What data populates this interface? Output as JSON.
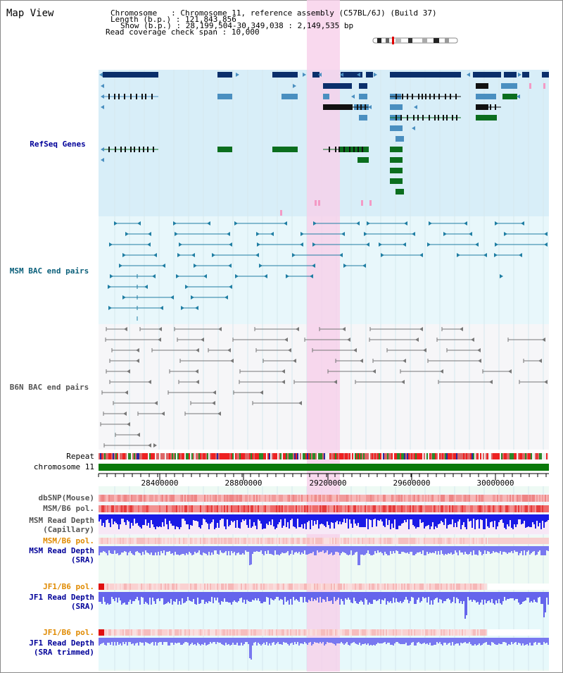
{
  "app": {
    "title": "Map View"
  },
  "header": {
    "chromosome_key": "Chromosome",
    "chromosome_val": "Chromosome 11, reference assembly (C57BL/6J) (Build 37)",
    "length_key": "Length (b.p.)",
    "length_val": "121,843,856",
    "show_key": "Show (b.p.)",
    "show_val": "28,199,504-30,349,038 : 2,149,535 bp",
    "coverage_key": "Read coverage check span",
    "coverage_val": "10,000"
  },
  "tracks": {
    "refseq": "RefSeq Genes",
    "msm_bac": "MSM BAC end pairs",
    "b6n_bac": "B6N BAC end pairs",
    "repeat": "Repeat",
    "chromosome": "chromosome 11",
    "dbsnp": "dbSNP(Mouse)",
    "msm_b6_pol": "MSM/B6 pol.",
    "msm_depth_cap_1": "MSM Read Depth",
    "msm_depth_cap_2": "(Capillary)",
    "msm_b6_pol2": "MSM/B6 pol.",
    "msm_depth_sra_1": "MSM Read Depth",
    "msm_depth_sra_2": "(SRA)",
    "jf1_pol": "JF1/B6 pol.",
    "jf1_depth_1": "JF1 Read Depth",
    "jf1_depth_2": "(SRA)",
    "jf1_pol2": "JF1/B6 pol.",
    "jf1_trim_1": "JF1 Read Depth",
    "jf1_trim_2": "(SRA trimmed)"
  },
  "axis": {
    "ticks": [
      "28400000",
      "28800000",
      "29200000",
      "29600000",
      "30000000"
    ]
  },
  "colors": {
    "gene_dark": "#0b2f6b",
    "gene_mid": "#4a8fc0",
    "gene_green": "#0b6e1e",
    "refseq_bg": "#d8eef8",
    "msm_bg": "#e8f7fb",
    "b6n_bg": "#f6f6f8",
    "highlight": "#f8cfea",
    "label_blue": "#000099",
    "label_teal": "#0a5f7a",
    "label_gray": "#555555",
    "label_orange": "#e08a00",
    "chromosome_green": "#0b7a0b"
  }
}
